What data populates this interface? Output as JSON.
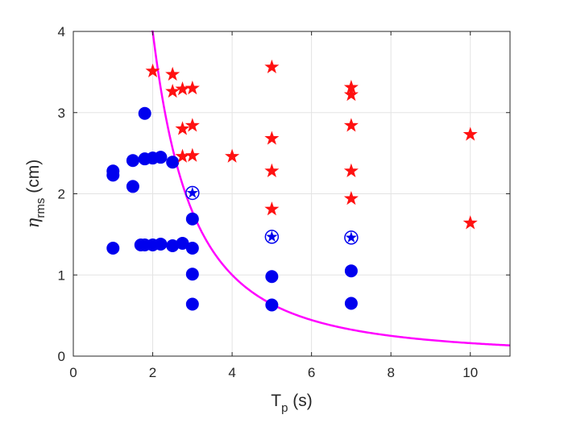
{
  "chart_data": {
    "type": "scatter",
    "title": "",
    "xlabel": {
      "main": "T",
      "sub": "p",
      "unit": " (s)"
    },
    "ylabel": {
      "main": "η",
      "sub": "rms",
      "unit": " (cm)"
    },
    "xlim": [
      0,
      11
    ],
    "ylim": [
      0,
      4
    ],
    "xticks": [
      0,
      2,
      4,
      6,
      8,
      10
    ],
    "yticks": [
      0,
      1,
      2,
      3,
      4
    ],
    "grid": true,
    "colors": {
      "circle": "#0000ee",
      "star": "#ff1111",
      "curve": "#ff00ff",
      "grid": "#e3e3e3",
      "axis": "#262626"
    },
    "series": [
      {
        "marker": "circle",
        "color": "#0000ee",
        "points": [
          [
            1.0,
            2.28
          ],
          [
            1.0,
            2.23
          ],
          [
            1.0,
            1.33
          ],
          [
            1.5,
            2.41
          ],
          [
            1.5,
            2.09
          ],
          [
            1.7,
            1.37
          ],
          [
            1.8,
            2.99
          ],
          [
            1.8,
            2.43
          ],
          [
            1.8,
            1.37
          ],
          [
            2.0,
            2.44
          ],
          [
            2.0,
            1.37
          ],
          [
            2.2,
            2.45
          ],
          [
            2.2,
            1.38
          ],
          [
            2.5,
            2.39
          ],
          [
            2.5,
            1.36
          ],
          [
            2.75,
            1.39
          ],
          [
            3.0,
            1.69
          ],
          [
            3.0,
            1.33
          ],
          [
            3.0,
            1.01
          ],
          [
            3.0,
            0.64
          ],
          [
            5.0,
            0.98
          ],
          [
            5.0,
            0.63
          ],
          [
            7.0,
            1.05
          ],
          [
            7.0,
            0.65
          ]
        ]
      },
      {
        "marker": "star",
        "color": "#ff1111",
        "points": [
          [
            2.0,
            3.51
          ],
          [
            2.5,
            3.47
          ],
          [
            2.5,
            3.26
          ],
          [
            2.75,
            3.29
          ],
          [
            3.0,
            3.3
          ],
          [
            2.75,
            2.8
          ],
          [
            3.0,
            2.84
          ],
          [
            2.75,
            2.46
          ],
          [
            3.0,
            2.47
          ],
          [
            4.0,
            2.46
          ],
          [
            5.0,
            3.56
          ],
          [
            5.0,
            2.68
          ],
          [
            5.0,
            2.28
          ],
          [
            5.0,
            1.81
          ],
          [
            7.0,
            3.31
          ],
          [
            7.0,
            3.22
          ],
          [
            7.0,
            2.84
          ],
          [
            7.0,
            2.28
          ],
          [
            7.0,
            1.94
          ],
          [
            10.0,
            2.73
          ],
          [
            10.0,
            1.64
          ]
        ]
      },
      {
        "marker": "circled-star",
        "color": "#0000ee",
        "points": [
          [
            3.0,
            2.01
          ],
          [
            5.0,
            1.47
          ],
          [
            7.0,
            1.46
          ]
        ]
      }
    ],
    "curve": {
      "color": "#ff00ff",
      "function": "y = 16 / x^2",
      "coefficient": 16,
      "x_range": [
        1.97,
        11
      ]
    }
  }
}
